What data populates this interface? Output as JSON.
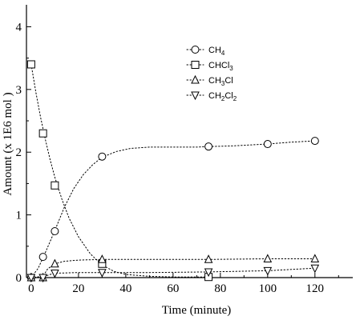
{
  "chart_data": {
    "type": "scatter",
    "xlabel": "Time (minute)",
    "ylabel": "Amount  (x 1E6 mol )",
    "xlim": [
      -2,
      136
    ],
    "ylim": [
      0,
      4.35
    ],
    "x_ticks": [
      0,
      20,
      40,
      60,
      80,
      100,
      120
    ],
    "y_ticks": [
      0,
      1,
      2,
      3,
      4
    ],
    "grid": false,
    "legend_position": "top-center",
    "series": [
      {
        "name": "CH4",
        "label_main": "CH",
        "label_sub": "4",
        "label_tail": "",
        "marker": "circle",
        "x": [
          0,
          5,
          10,
          30,
          75,
          100,
          120
        ],
        "y": [
          0.0,
          0.33,
          0.74,
          1.93,
          2.09,
          2.13,
          2.18
        ],
        "curve": [
          [
            0,
            0.0
          ],
          [
            3,
            0.15
          ],
          [
            6,
            0.4
          ],
          [
            10,
            0.75
          ],
          [
            14,
            1.12
          ],
          [
            18,
            1.42
          ],
          [
            22,
            1.64
          ],
          [
            26,
            1.8
          ],
          [
            30,
            1.92
          ],
          [
            36,
            2.01
          ],
          [
            42,
            2.06
          ],
          [
            50,
            2.08
          ],
          [
            60,
            2.08
          ],
          [
            70,
            2.08
          ],
          [
            75,
            2.09
          ],
          [
            85,
            2.1
          ],
          [
            95,
            2.12
          ],
          [
            100,
            2.13
          ],
          [
            110,
            2.16
          ],
          [
            120,
            2.18
          ]
        ]
      },
      {
        "name": "CHCl3",
        "label_main": "CHCl",
        "label_sub": "3",
        "label_tail": "",
        "marker": "square",
        "x": [
          0,
          5,
          10,
          30,
          75
        ],
        "y": [
          3.4,
          2.3,
          1.47,
          0.22,
          0.01
        ],
        "curve": [
          [
            0,
            3.4
          ],
          [
            2,
            2.95
          ],
          [
            4,
            2.55
          ],
          [
            6,
            2.2
          ],
          [
            8,
            1.88
          ],
          [
            10,
            1.6
          ],
          [
            13,
            1.25
          ],
          [
            16,
            0.95
          ],
          [
            20,
            0.65
          ],
          [
            25,
            0.38
          ],
          [
            30,
            0.2
          ],
          [
            35,
            0.1
          ],
          [
            40,
            0.05
          ],
          [
            50,
            0.02
          ],
          [
            60,
            0.01
          ],
          [
            75,
            0.01
          ]
        ]
      },
      {
        "name": "CH3Cl",
        "label_main": "CH",
        "label_sub": "3",
        "label_tail": "Cl",
        "marker": "triangle-up",
        "x": [
          0,
          5,
          10,
          30,
          75,
          100,
          120
        ],
        "y": [
          0.0,
          0.0,
          0.22,
          0.29,
          0.29,
          0.3,
          0.3
        ],
        "curve": [
          [
            0,
            0.0
          ],
          [
            5,
            0.02
          ],
          [
            7,
            0.14
          ],
          [
            10,
            0.22
          ],
          [
            14,
            0.26
          ],
          [
            20,
            0.28
          ],
          [
            30,
            0.29
          ],
          [
            50,
            0.29
          ],
          [
            75,
            0.29
          ],
          [
            100,
            0.3
          ],
          [
            120,
            0.3
          ]
        ]
      },
      {
        "name": "CH2Cl2",
        "label_main": "CH",
        "label_sub": "2",
        "label_tail": "Cl",
        "label_sub2": "2",
        "marker": "triangle-down",
        "x": [
          0,
          5,
          10,
          30,
          75,
          100,
          120
        ],
        "y": [
          0.0,
          0.0,
          0.07,
          0.08,
          0.09,
          0.11,
          0.15
        ],
        "curve": [
          [
            0,
            0.0
          ],
          [
            5,
            0.01
          ],
          [
            8,
            0.05
          ],
          [
            10,
            0.07
          ],
          [
            20,
            0.08
          ],
          [
            30,
            0.08
          ],
          [
            50,
            0.08
          ],
          [
            75,
            0.09
          ],
          [
            100,
            0.11
          ],
          [
            120,
            0.15
          ]
        ]
      }
    ]
  }
}
